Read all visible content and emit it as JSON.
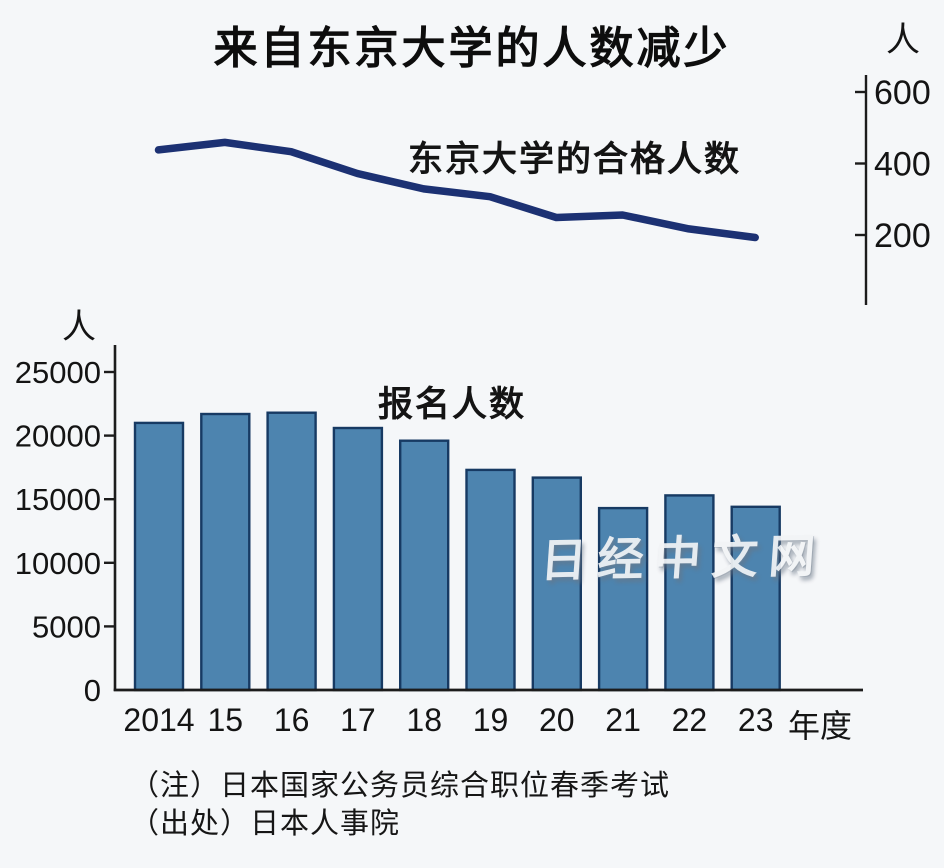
{
  "page": {
    "title": "来自东京大学的人数减少",
    "watermark": "日经中文网",
    "notes": [
      "（注）日本国家公务员综合职位春季考试",
      "（出处）日本人事院"
    ]
  },
  "colors": {
    "background": "#f5f7f9",
    "title_text": "#0d0d0d",
    "line": "#1c3173",
    "bar_fill": "#4d84af",
    "bar_stroke": "#173a63",
    "axis": "#1c1c1c",
    "watermark": "#f2f4f6"
  },
  "chart_data": [
    {
      "type": "line",
      "title": "东京大学的合格人数",
      "unit_label": "人",
      "categories": [
        "2014",
        "15",
        "16",
        "17",
        "18",
        "19",
        "20",
        "21",
        "22",
        "23"
      ],
      "values": [
        438,
        459,
        433,
        372,
        329,
        307,
        249,
        256,
        217,
        193
      ],
      "yticks": [
        200,
        400,
        600
      ],
      "ylim": [
        150,
        660
      ],
      "axis_side": "right",
      "grid": false,
      "legend_position": "inline-label"
    },
    {
      "type": "bar",
      "title": "报名人数",
      "unit_label": "人",
      "xlabel": "年度",
      "categories": [
        "2014",
        "15",
        "16",
        "17",
        "18",
        "19",
        "20",
        "21",
        "22",
        "23"
      ],
      "values": [
        21000,
        21700,
        21800,
        20600,
        19600,
        17300,
        16700,
        14300,
        15300,
        14400
      ],
      "yticks": [
        0,
        5000,
        10000,
        15000,
        20000,
        25000
      ],
      "ylim": [
        0,
        26500
      ],
      "axis_side": "left",
      "grid": false,
      "legend_position": "inline-label"
    }
  ]
}
